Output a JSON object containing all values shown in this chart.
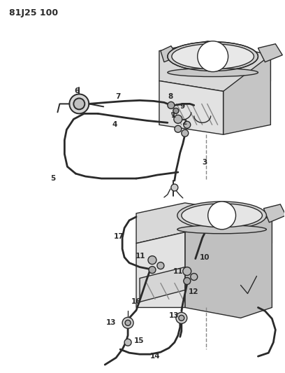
{
  "title": "81J25 100",
  "bg": "#ffffff",
  "lc": "#2a2a2a",
  "fig_w": 4.08,
  "fig_h": 5.33,
  "dpi": 100
}
